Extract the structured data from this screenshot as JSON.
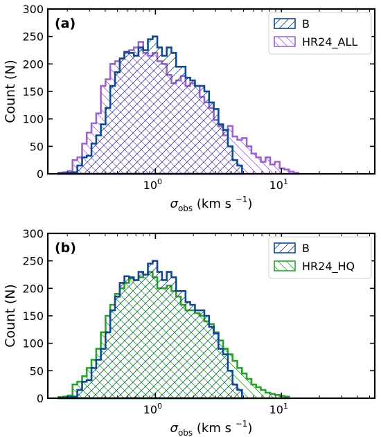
{
  "chart_data": [
    {
      "type": "histogram",
      "panel_label": "(a)",
      "xlabel": {
        "symbol": "σ",
        "subscript": "obs",
        "units": "(km s",
        "exp": "−1",
        "close": ")"
      },
      "ylabel": "Count (N)",
      "xscale": "log",
      "xlim": [
        0.14,
        55
      ],
      "ylim": [
        0,
        300
      ],
      "yticks": [
        "0",
        "50",
        "100",
        "150",
        "200",
        "250",
        "300"
      ],
      "xticks": [
        {
          "base": "10",
          "exp": "0"
        },
        {
          "base": "10",
          "exp": "1"
        }
      ],
      "legend_position": "top-right",
      "bin_edges": [
        0.17,
        0.186,
        0.202,
        0.22,
        0.24,
        0.262,
        0.285,
        0.311,
        0.339,
        0.369,
        0.402,
        0.438,
        0.478,
        0.521,
        0.567,
        0.618,
        0.674,
        0.734,
        0.8,
        0.872,
        0.95,
        1.035,
        1.128,
        1.229,
        1.34,
        1.46,
        1.591,
        1.734,
        1.889,
        2.059,
        2.243,
        2.445,
        2.664,
        2.903,
        3.164,
        3.448,
        3.757,
        4.094,
        4.462,
        4.862,
        5.298,
        5.774,
        6.292,
        6.857,
        7.472,
        8.142,
        8.873,
        9.669,
        10.537,
        11.482,
        12.513,
        13.636,
        14.859,
        16.193,
        17.646,
        19.229,
        20.955,
        22.836,
        24.885,
        27.118,
        29.552,
        32.204,
        35.094,
        38.244,
        41.676,
        45.416
      ],
      "series": [
        {
          "name": "B",
          "color": "#0d4a92",
          "hatch": "forward",
          "values": [
            1,
            1,
            2,
            3,
            15,
            30,
            33,
            55,
            70,
            90,
            120,
            160,
            185,
            210,
            222,
            220,
            215,
            230,
            225,
            245,
            250,
            230,
            215,
            230,
            220,
            195,
            195,
            175,
            170,
            160,
            160,
            150,
            130,
            118,
            90,
            80,
            50,
            25,
            15
          ]
        },
        {
          "name": "HR24_ALL",
          "color": "#9a66cc",
          "hatch": "back",
          "values": [
            2,
            3,
            5,
            25,
            30,
            55,
            75,
            92,
            110,
            160,
            172,
            200,
            205,
            210,
            220,
            225,
            230,
            240,
            220,
            215,
            220,
            205,
            200,
            180,
            165,
            170,
            178,
            160,
            165,
            160,
            140,
            130,
            120,
            98,
            87,
            70,
            87,
            68,
            62,
            65,
            50,
            37,
            30,
            22,
            30,
            17,
            22,
            10,
            8,
            4,
            2
          ]
        }
      ]
    },
    {
      "type": "histogram",
      "panel_label": "(b)",
      "xlabel": {
        "symbol": "σ",
        "subscript": "obs",
        "units": "(km s",
        "exp": "−1",
        "close": ")"
      },
      "ylabel": "Count (N)",
      "xscale": "log",
      "xlim": [
        0.14,
        55
      ],
      "ylim": [
        0,
        300
      ],
      "yticks": [
        "0",
        "50",
        "100",
        "150",
        "200",
        "250",
        "300"
      ],
      "xticks": [
        {
          "base": "10",
          "exp": "0"
        },
        {
          "base": "10",
          "exp": "1"
        }
      ],
      "legend_position": "top-right",
      "bin_edges": [
        0.17,
        0.186,
        0.202,
        0.22,
        0.24,
        0.262,
        0.285,
        0.311,
        0.339,
        0.369,
        0.402,
        0.438,
        0.478,
        0.521,
        0.567,
        0.618,
        0.674,
        0.734,
        0.8,
        0.872,
        0.95,
        1.035,
        1.128,
        1.229,
        1.34,
        1.46,
        1.591,
        1.734,
        1.889,
        2.059,
        2.243,
        2.445,
        2.664,
        2.903,
        3.164,
        3.448,
        3.757,
        4.094,
        4.462,
        4.862,
        5.298,
        5.774,
        6.292,
        6.857,
        7.472,
        8.142,
        8.873,
        9.669,
        10.537,
        11.482,
        12.513,
        13.636,
        14.859,
        16.193,
        17.646,
        19.229,
        20.955,
        22.836,
        24.885,
        27.118,
        29.552,
        32.204,
        35.094,
        38.244,
        41.676,
        45.416
      ],
      "series": [
        {
          "name": "B",
          "color": "#0d4a92",
          "hatch": "forward",
          "values": [
            1,
            1,
            2,
            3,
            15,
            30,
            33,
            55,
            70,
            90,
            120,
            160,
            185,
            210,
            222,
            220,
            215,
            230,
            225,
            245,
            250,
            230,
            215,
            230,
            220,
            195,
            195,
            175,
            170,
            160,
            160,
            150,
            130,
            118,
            90,
            80,
            50,
            25,
            15
          ]
        },
        {
          "name": "HR24_HQ",
          "color": "#2ca02c",
          "hatch": "back",
          "values": [
            2,
            3,
            5,
            25,
            30,
            40,
            55,
            70,
            90,
            120,
            150,
            170,
            190,
            200,
            210,
            218,
            215,
            220,
            225,
            230,
            220,
            200,
            200,
            205,
            195,
            185,
            170,
            160,
            160,
            155,
            150,
            140,
            135,
            120,
            105,
            90,
            80,
            68,
            55,
            45,
            35,
            25,
            20,
            15,
            10,
            8,
            6,
            4,
            3
          ]
        }
      ]
    }
  ]
}
